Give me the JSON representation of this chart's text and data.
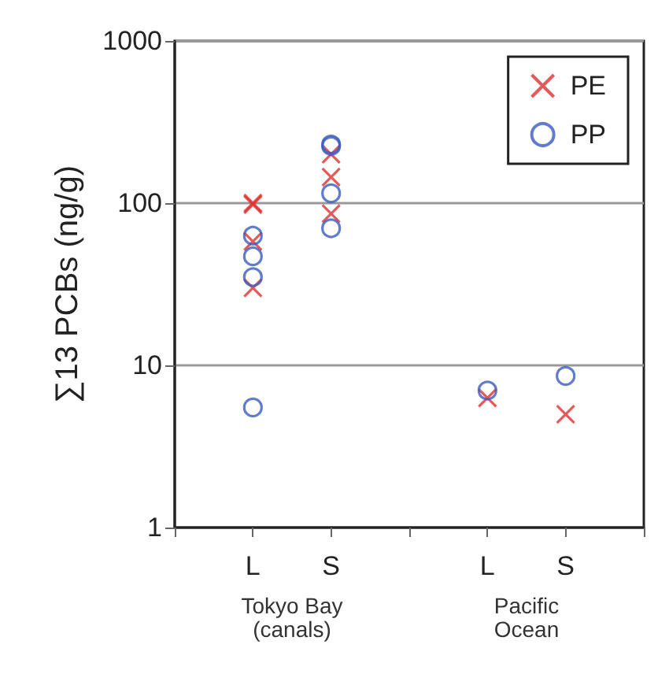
{
  "chart_data": {
    "type": "scatter",
    "ylabel": "∑13 PCBs (ng/g)",
    "log": "y",
    "categories": [
      null,
      "L",
      "S",
      null,
      "L",
      "S",
      null
    ],
    "ylim": [
      1,
      1000
    ],
    "yticks": [
      1,
      10,
      100,
      1000
    ],
    "grid": "y",
    "legend": "top right",
    "annotations": [
      "Tokyo Bay\n(canals)",
      "Pacific\nOcean"
    ],
    "series": [
      {
        "name": "PE",
        "color": "#e03030",
        "marker": "cross",
        "values": [
          null,
          100,
          200,
          null,
          6.3,
          5.0,
          null
        ]
      },
      {
        "color": "#e03030",
        "marker": "cross",
        "values": [
          null,
          98,
          145,
          null,
          null,
          null,
          null
        ]
      },
      {
        "color": "#e03030",
        "marker": "cross",
        "values": [
          null,
          58,
          86,
          null,
          null,
          null,
          null
        ]
      },
      {
        "color": "#e03030",
        "marker": "cross",
        "values": [
          null,
          30,
          null,
          null,
          null,
          null,
          null
        ]
      },
      {
        "name": "PP",
        "color": "#3a5bc0",
        "marker": "circle",
        "values": [
          null,
          63,
          230,
          null,
          7.0,
          8.6,
          null
        ]
      },
      {
        "color": "#3a5bc0",
        "marker": "circle",
        "values": [
          null,
          47,
          225,
          null,
          null,
          null,
          null
        ]
      },
      {
        "color": "#3a5bc0",
        "marker": "circle",
        "values": [
          null,
          35,
          115,
          null,
          null,
          null,
          null
        ]
      },
      {
        "color": "#3a5bc0",
        "marker": "circle",
        "values": [
          null,
          5.5,
          70,
          null,
          null,
          null,
          null
        ]
      }
    ]
  }
}
